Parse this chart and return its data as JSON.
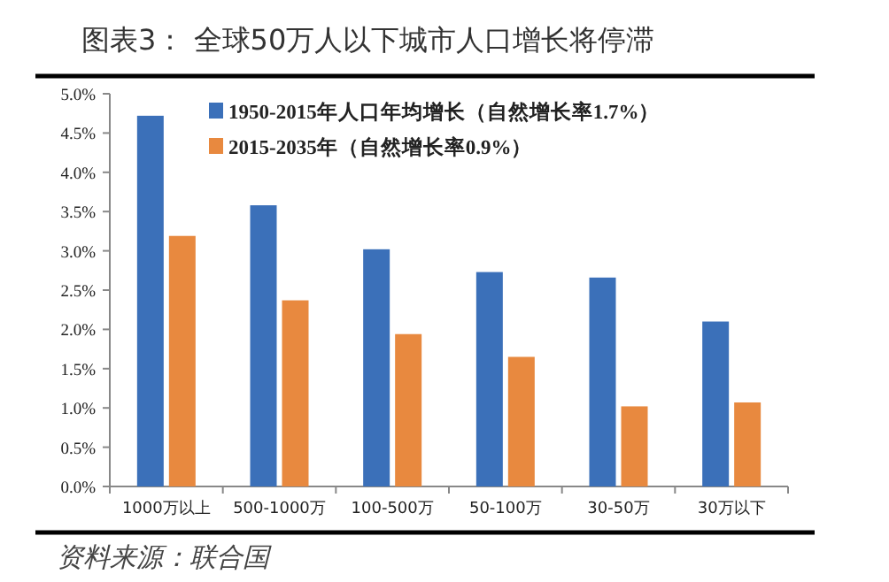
{
  "chart_data": {
    "type": "bar",
    "title": "图表3：  全球50万人以下城市人口增长将停滞",
    "categories": [
      "1000万以上",
      "500-1000万",
      "100-500万",
      "50-100万",
      "30-50万",
      "30万以下"
    ],
    "series": [
      {
        "name": "1950-2015年人口年均增长（自然增长率1.7%）",
        "color": "#3b70b9",
        "values": [
          4.72,
          3.58,
          3.02,
          2.73,
          2.66,
          2.1
        ]
      },
      {
        "name": "2015-2035年（自然增长率0.9%）",
        "color": "#e8893f",
        "values": [
          3.19,
          2.37,
          1.94,
          1.65,
          1.02,
          1.07
        ]
      }
    ],
    "ylim": [
      0,
      5
    ],
    "yticks": [
      {
        "value": 0,
        "label": "0.0%"
      },
      {
        "value": 0.5,
        "label": "0.5%"
      },
      {
        "value": 1,
        "label": "1.0%"
      },
      {
        "value": 1.5,
        "label": "1.5%"
      },
      {
        "value": 2,
        "label": "2.0%"
      },
      {
        "value": 2.5,
        "label": "2.5%"
      },
      {
        "value": 3,
        "label": "3.0%"
      },
      {
        "value": 3.5,
        "label": "3.5%"
      },
      {
        "value": 4,
        "label": "4.0%"
      },
      {
        "value": 4.5,
        "label": "4.5%"
      },
      {
        "value": 5,
        "label": "5.0%"
      }
    ],
    "legend": "top",
    "annotations": [
      "资料来源：联合国"
    ]
  }
}
